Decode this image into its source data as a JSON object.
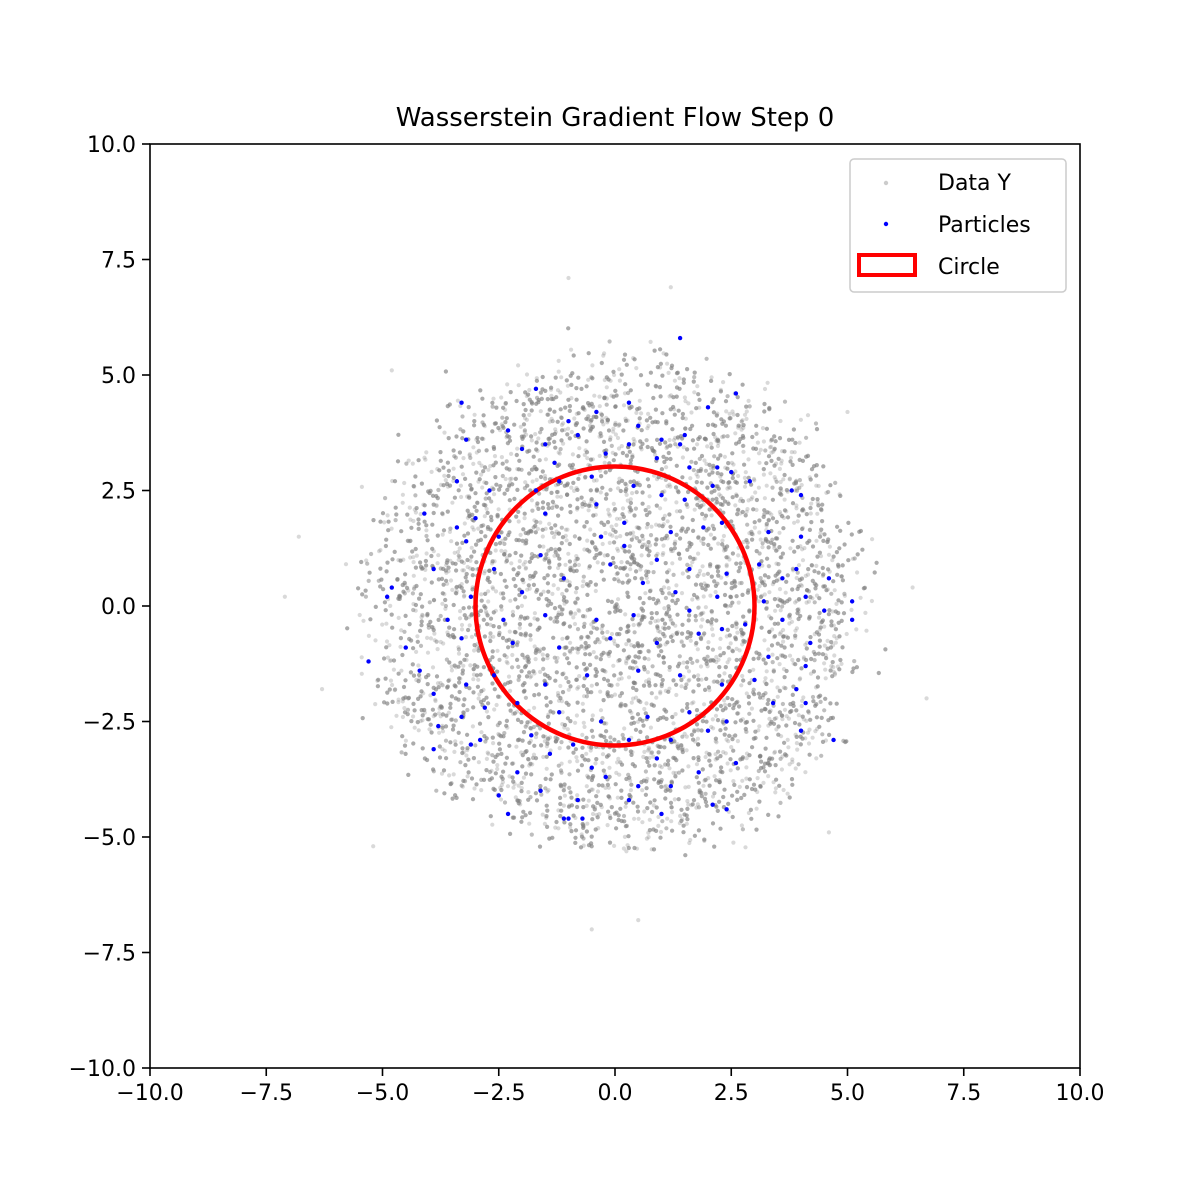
{
  "chart_data": {
    "type": "scatter",
    "title": "Wasserstein Gradient Flow Step 0",
    "xlabel": "",
    "ylabel": "",
    "xlim": [
      -10,
      10
    ],
    "ylim": [
      -10,
      10
    ],
    "xticks": [
      "−10.0",
      "−7.5",
      "−5.0",
      "−2.5",
      "0.0",
      "2.5",
      "5.0",
      "7.5",
      "10.0"
    ],
    "yticks": [
      "−10.0",
      "−7.5",
      "−5.0",
      "−2.5",
      "0.0",
      "2.5",
      "5.0",
      "7.5",
      "10.0"
    ],
    "grid": false,
    "legend_position": "top-right",
    "series": [
      {
        "name": "Data Y",
        "kind": "scatter-cloud",
        "color": "#808080",
        "alpha": 0.3,
        "distribution": "ring-shaped cloud centered at origin, dense between radius ~1 and ~5.5, sparse outliers to radius ~7",
        "points": [
          [
            -7.1,
            0.2
          ],
          [
            -6.8,
            1.5
          ],
          [
            6.7,
            -2.0
          ],
          [
            -6.3,
            -1.8
          ],
          [
            6.4,
            0.4
          ],
          [
            -1.0,
            7.1
          ],
          [
            1.2,
            6.9
          ],
          [
            -0.5,
            -7.0
          ],
          [
            0.5,
            -6.8
          ],
          [
            -5.2,
            -5.2
          ],
          [
            4.6,
            -4.9
          ],
          [
            -4.8,
            5.1
          ],
          [
            5.0,
            4.2
          ]
        ]
      },
      {
        "name": "Particles",
        "kind": "scatter",
        "color": "#0000ff",
        "points": [
          [
            1.4,
            5.8
          ],
          [
            -1.7,
            4.7
          ],
          [
            -3.3,
            4.4
          ],
          [
            -3.2,
            3.6
          ],
          [
            2.6,
            4.6
          ],
          [
            2.0,
            4.3
          ],
          [
            0.3,
            4.4
          ],
          [
            -0.4,
            4.2
          ],
          [
            -1.0,
            4.0
          ],
          [
            -2.3,
            3.8
          ],
          [
            -1.5,
            3.5
          ],
          [
            -0.8,
            3.7
          ],
          [
            0.5,
            3.9
          ],
          [
            1.0,
            3.6
          ],
          [
            1.4,
            3.5
          ],
          [
            1.5,
            3.7
          ],
          [
            -2.0,
            3.4
          ],
          [
            -1.3,
            3.1
          ],
          [
            -0.2,
            3.3
          ],
          [
            0.3,
            3.5
          ],
          [
            0.9,
            3.2
          ],
          [
            1.6,
            3.0
          ],
          [
            2.2,
            3.0
          ],
          [
            2.5,
            2.9
          ],
          [
            -3.4,
            2.7
          ],
          [
            -2.7,
            2.5
          ],
          [
            -1.7,
            2.5
          ],
          [
            -1.2,
            2.7
          ],
          [
            -0.5,
            2.8
          ],
          [
            0.4,
            2.6
          ],
          [
            1.0,
            2.4
          ],
          [
            1.5,
            2.3
          ],
          [
            2.1,
            2.6
          ],
          [
            2.9,
            2.7
          ],
          [
            3.8,
            2.5
          ],
          [
            4.0,
            2.4
          ],
          [
            -4.1,
            2.0
          ],
          [
            -3.0,
            1.9
          ],
          [
            -2.5,
            1.5
          ],
          [
            -1.5,
            2.0
          ],
          [
            -0.4,
            2.2
          ],
          [
            0.2,
            1.8
          ],
          [
            1.2,
            1.6
          ],
          [
            1.9,
            1.7
          ],
          [
            2.3,
            1.8
          ],
          [
            3.3,
            1.6
          ],
          [
            4.0,
            1.5
          ],
          [
            -3.4,
            1.7
          ],
          [
            -3.2,
            1.4
          ],
          [
            -2.6,
            0.8
          ],
          [
            -1.6,
            1.1
          ],
          [
            -0.3,
            1.5
          ],
          [
            0.2,
            1.3
          ],
          [
            0.9,
            1.0
          ],
          [
            1.6,
            0.8
          ],
          [
            2.4,
            0.7
          ],
          [
            3.1,
            0.9
          ],
          [
            3.6,
            0.6
          ],
          [
            3.9,
            0.8
          ],
          [
            4.6,
            0.6
          ],
          [
            -3.9,
            0.8
          ],
          [
            -3.1,
            0.2
          ],
          [
            -2.0,
            0.3
          ],
          [
            -1.1,
            0.6
          ],
          [
            -0.1,
            0.9
          ],
          [
            0.6,
            0.5
          ],
          [
            1.3,
            0.3
          ],
          [
            2.2,
            0.2
          ],
          [
            3.2,
            0.1
          ],
          [
            4.1,
            0.2
          ],
          [
            5.1,
            0.1
          ],
          [
            -4.8,
            0.4
          ],
          [
            -4.9,
            0.2
          ],
          [
            -3.6,
            -0.3
          ],
          [
            -2.4,
            -0.3
          ],
          [
            -1.5,
            -0.2
          ],
          [
            -0.4,
            -0.3
          ],
          [
            0.4,
            -0.2
          ],
          [
            1.6,
            -0.1
          ],
          [
            2.8,
            -0.4
          ],
          [
            3.6,
            -0.3
          ],
          [
            4.5,
            -0.1
          ],
          [
            5.1,
            -0.3
          ],
          [
            -5.3,
            -1.2
          ],
          [
            -4.5,
            -0.9
          ],
          [
            -4.2,
            -1.4
          ],
          [
            -3.3,
            -0.7
          ],
          [
            -2.2,
            -0.8
          ],
          [
            -1.2,
            -0.9
          ],
          [
            -0.1,
            -0.7
          ],
          [
            0.9,
            -0.8
          ],
          [
            1.8,
            -0.6
          ],
          [
            2.3,
            -0.5
          ],
          [
            3.3,
            -1.1
          ],
          [
            4.2,
            -0.8
          ],
          [
            4.1,
            -1.3
          ],
          [
            -3.9,
            -1.9
          ],
          [
            -3.2,
            -1.7
          ],
          [
            -2.6,
            -1.5
          ],
          [
            -1.5,
            -1.7
          ],
          [
            -0.6,
            -1.5
          ],
          [
            0.5,
            -1.4
          ],
          [
            1.4,
            -1.5
          ],
          [
            2.3,
            -1.7
          ],
          [
            3.0,
            -1.6
          ],
          [
            3.9,
            -1.8
          ],
          [
            -3.3,
            -2.4
          ],
          [
            -2.8,
            -2.2
          ],
          [
            -2.1,
            -2.1
          ],
          [
            -1.2,
            -2.3
          ],
          [
            -0.3,
            -2.5
          ],
          [
            0.7,
            -2.4
          ],
          [
            1.6,
            -2.3
          ],
          [
            2.4,
            -2.5
          ],
          [
            3.4,
            -2.1
          ],
          [
            4.1,
            -2.1
          ],
          [
            -3.8,
            -2.6
          ],
          [
            -2.9,
            -2.9
          ],
          [
            -1.8,
            -2.8
          ],
          [
            -0.9,
            -3.0
          ],
          [
            0.3,
            -2.9
          ],
          [
            1.2,
            -2.9
          ],
          [
            2.0,
            -2.7
          ],
          [
            4.0,
            -2.7
          ],
          [
            4.7,
            -2.9
          ],
          [
            -3.9,
            -3.1
          ],
          [
            -3.1,
            -3.0
          ],
          [
            -1.4,
            -3.2
          ],
          [
            -0.5,
            -3.5
          ],
          [
            0.9,
            -3.3
          ],
          [
            1.8,
            -3.6
          ],
          [
            2.6,
            -3.4
          ],
          [
            -2.1,
            -3.6
          ],
          [
            -0.2,
            -3.7
          ],
          [
            0.5,
            -3.9
          ],
          [
            -2.5,
            -4.1
          ],
          [
            -1.6,
            -4.0
          ],
          [
            -0.8,
            -4.2
          ],
          [
            0.3,
            -4.2
          ],
          [
            1.2,
            -3.9
          ],
          [
            2.1,
            -4.3
          ],
          [
            -2.3,
            -4.5
          ],
          [
            -1.1,
            -4.6
          ],
          [
            -0.7,
            -4.6
          ],
          [
            1.0,
            -4.5
          ],
          [
            2.4,
            -4.4
          ],
          [
            -1.0,
            -4.6
          ]
        ]
      },
      {
        "name": "Circle",
        "kind": "circle",
        "color": "#ff0000",
        "center": [
          0,
          0
        ],
        "radius": 3.0
      }
    ]
  }
}
